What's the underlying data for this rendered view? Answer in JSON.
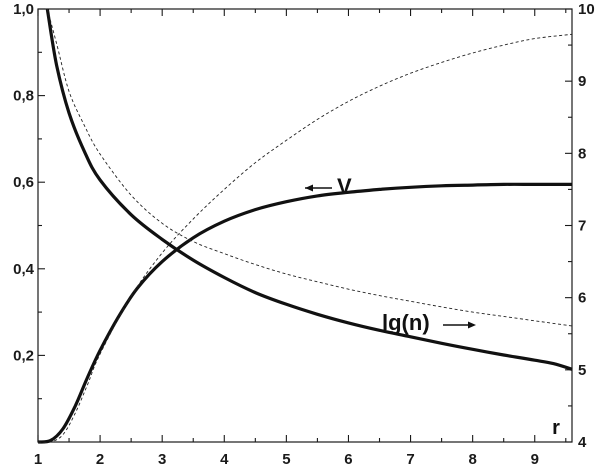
{
  "chart_data": {
    "type": "line",
    "title": "",
    "xlabel": "r",
    "x_range": [
      1,
      9.6
    ],
    "y_left_range": [
      0,
      1.0
    ],
    "y_right_range": [
      4,
      10
    ],
    "x_ticks": [
      "1",
      "2",
      "3",
      "4",
      "5",
      "6",
      "7",
      "8",
      "9"
    ],
    "y_left_ticks": [
      "0,2",
      "0,4",
      "0,6",
      "0,8",
      "1,0"
    ],
    "y_right_ticks": [
      "4",
      "5",
      "6",
      "7",
      "8",
      "9",
      "10"
    ],
    "grid": false,
    "annotations": [
      {
        "text": "V",
        "arrow": "points-left",
        "axis": "left"
      },
      {
        "text": "lg(n)",
        "arrow": "points-right",
        "axis": "right"
      }
    ],
    "series": [
      {
        "axis": "left",
        "style": "solid",
        "points": [
          [
            1.15,
            1.0
          ],
          [
            1.3,
            0.87
          ],
          [
            1.5,
            0.76
          ],
          [
            1.75,
            0.67
          ],
          [
            2,
            0.605
          ],
          [
            2.5,
            0.525
          ],
          [
            3,
            0.468
          ],
          [
            3.5,
            0.42
          ],
          [
            4,
            0.38
          ],
          [
            4.5,
            0.345
          ],
          [
            5,
            0.318
          ],
          [
            5.5,
            0.295
          ],
          [
            6,
            0.275
          ],
          [
            6.5,
            0.258
          ],
          [
            7,
            0.243
          ],
          [
            7.5,
            0.228
          ],
          [
            8,
            0.214
          ],
          [
            8.5,
            0.201
          ],
          [
            9,
            0.189
          ],
          [
            9.3,
            0.181
          ],
          [
            9.6,
            0.168
          ]
        ]
      },
      {
        "axis": "right",
        "style": "solid",
        "points": [
          [
            1,
            4.0
          ],
          [
            1.2,
            4.02
          ],
          [
            1.4,
            4.18
          ],
          [
            1.6,
            4.5
          ],
          [
            1.8,
            4.9
          ],
          [
            2,
            5.27
          ],
          [
            2.3,
            5.74
          ],
          [
            2.6,
            6.13
          ],
          [
            3,
            6.5
          ],
          [
            3.5,
            6.83
          ],
          [
            4,
            7.06
          ],
          [
            4.5,
            7.22
          ],
          [
            5,
            7.33
          ],
          [
            5.5,
            7.41
          ],
          [
            6,
            7.46
          ],
          [
            6.5,
            7.5
          ],
          [
            7,
            7.53
          ],
          [
            7.5,
            7.55
          ],
          [
            8,
            7.56
          ],
          [
            8.5,
            7.57
          ],
          [
            9,
            7.57
          ],
          [
            9.6,
            7.57
          ]
        ]
      },
      {
        "axis": "left",
        "style": "dashed",
        "points": [
          [
            1.15,
            1.0
          ],
          [
            1.3,
            0.92
          ],
          [
            1.5,
            0.81
          ],
          [
            1.75,
            0.73
          ],
          [
            2,
            0.665
          ],
          [
            2.5,
            0.57
          ],
          [
            3,
            0.505
          ],
          [
            3.5,
            0.463
          ],
          [
            4,
            0.435
          ],
          [
            4.5,
            0.41
          ],
          [
            5,
            0.388
          ],
          [
            5.5,
            0.37
          ],
          [
            6,
            0.353
          ],
          [
            6.5,
            0.338
          ],
          [
            7,
            0.325
          ],
          [
            7.5,
            0.312
          ],
          [
            8,
            0.3
          ],
          [
            8.5,
            0.29
          ],
          [
            9,
            0.28
          ],
          [
            9.3,
            0.274
          ],
          [
            9.6,
            0.268
          ]
        ]
      },
      {
        "axis": "right",
        "style": "dashed",
        "points": [
          [
            1,
            4.0
          ],
          [
            1.2,
            4.0
          ],
          [
            1.4,
            4.1
          ],
          [
            1.6,
            4.4
          ],
          [
            1.8,
            4.8
          ],
          [
            2,
            5.22
          ],
          [
            2.5,
            6.02
          ],
          [
            3,
            6.62
          ],
          [
            3.5,
            7.09
          ],
          [
            4,
            7.5
          ],
          [
            4.5,
            7.87
          ],
          [
            5,
            8.18
          ],
          [
            5.5,
            8.47
          ],
          [
            6,
            8.72
          ],
          [
            6.5,
            8.93
          ],
          [
            7,
            9.11
          ],
          [
            7.5,
            9.26
          ],
          [
            8,
            9.39
          ],
          [
            8.5,
            9.5
          ],
          [
            9,
            9.59
          ],
          [
            9.6,
            9.65
          ]
        ]
      }
    ]
  }
}
